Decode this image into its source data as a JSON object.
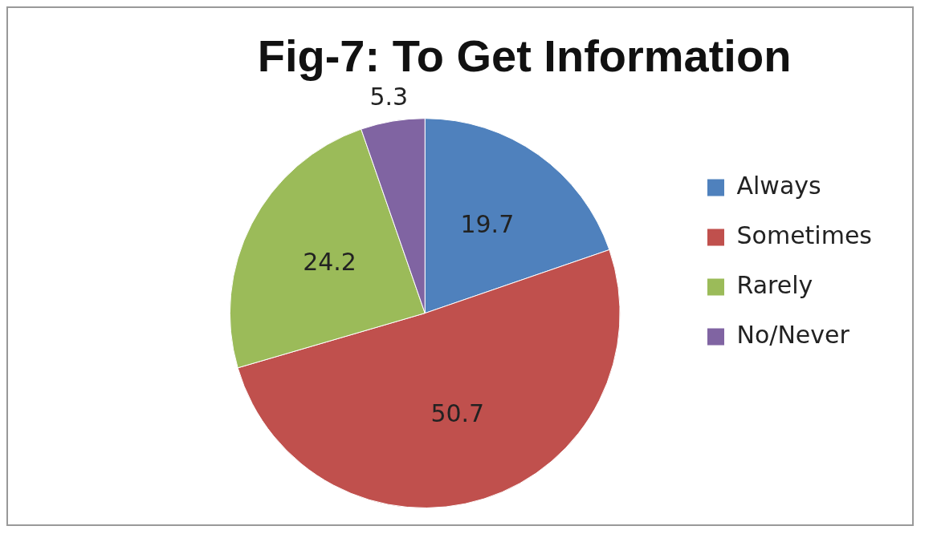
{
  "chart_data": {
    "type": "pie",
    "title": "Fig-7: To Get Information",
    "categories": [
      "Always",
      "Sometimes",
      "Rarely",
      "No/Never"
    ],
    "values": [
      19.7,
      50.7,
      24.2,
      5.3
    ],
    "colors": [
      "#4f81bd",
      "#c0504d",
      "#9bbb59",
      "#8064a2"
    ],
    "data_labels": true,
    "legend": "right"
  }
}
